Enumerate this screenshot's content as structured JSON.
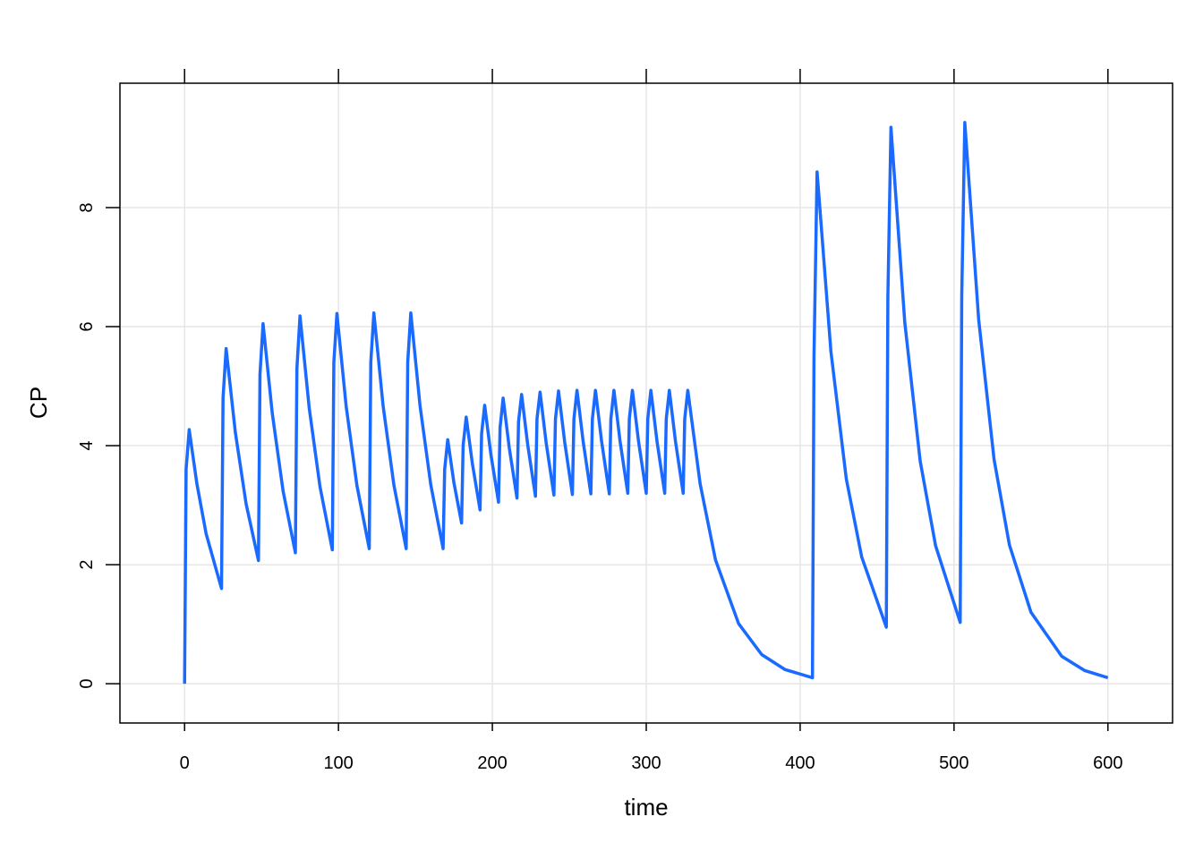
{
  "chart_data": {
    "type": "line",
    "x_label": "time",
    "y_label": "CP",
    "xlim": [
      -42,
      642
    ],
    "ylim": [
      -0.66,
      10.09
    ],
    "xticks": [
      0,
      100,
      200,
      300,
      400,
      500,
      600
    ],
    "yticks": [
      0,
      2,
      4,
      6,
      8
    ],
    "grid": true,
    "x": [
      0,
      1,
      3,
      8,
      14,
      24,
      25,
      27,
      33,
      40,
      48,
      49,
      51,
      57,
      64,
      72,
      73,
      75,
      81,
      88,
      96,
      97,
      99,
      105,
      112,
      120,
      121,
      123,
      129,
      136,
      144,
      145,
      147,
      153,
      160,
      168,
      169,
      171,
      175,
      180,
      181,
      183,
      187,
      192,
      193,
      195,
      199,
      204,
      205,
      207,
      211,
      216,
      217,
      219,
      223,
      228,
      229,
      231,
      235,
      240,
      241,
      243,
      247,
      252,
      253,
      255,
      259,
      264,
      265,
      267,
      271,
      276,
      277,
      279,
      283,
      288,
      289,
      291,
      295,
      300,
      301,
      303,
      307,
      312,
      313,
      315,
      319,
      324,
      325,
      327,
      335,
      345,
      360,
      375,
      390,
      408,
      409,
      411,
      420,
      430,
      440,
      456,
      457,
      459,
      468,
      478,
      488,
      504,
      505,
      507,
      516,
      526,
      536,
      550,
      570,
      585,
      600
    ],
    "series": [
      {
        "name": "CP",
        "color": "#1a6aff",
        "values": [
          0,
          3.6,
          4.27,
          3.36,
          2.52,
          1.6,
          4.8,
          5.63,
          4.22,
          3.02,
          2.07,
          5.2,
          6.05,
          4.54,
          3.24,
          2.2,
          5.3,
          6.18,
          4.63,
          3.31,
          2.25,
          5.4,
          6.22,
          4.66,
          3.33,
          2.27,
          5.4,
          6.23,
          4.67,
          3.34,
          2.27,
          5.4,
          6.23,
          4.67,
          3.34,
          2.27,
          3.6,
          4.1,
          3.38,
          2.7,
          4.0,
          4.48,
          3.7,
          2.92,
          4.2,
          4.68,
          3.86,
          3.05,
          4.3,
          4.8,
          3.96,
          3.12,
          4.4,
          4.86,
          4.01,
          3.15,
          4.45,
          4.9,
          4.04,
          3.17,
          4.45,
          4.92,
          4.06,
          3.18,
          4.45,
          4.93,
          4.07,
          3.19,
          4.45,
          4.93,
          4.07,
          3.19,
          4.45,
          4.93,
          4.07,
          3.2,
          4.45,
          4.93,
          4.07,
          3.2,
          4.45,
          4.93,
          4.07,
          3.2,
          4.45,
          4.93,
          4.07,
          3.2,
          4.45,
          4.93,
          3.36,
          2.08,
          1.01,
          0.49,
          0.24,
          0.1,
          5.5,
          8.6,
          5.58,
          3.44,
          2.13,
          0.95,
          6.5,
          9.35,
          6.07,
          3.74,
          2.32,
          1.03,
          6.5,
          9.43,
          6.12,
          3.77,
          2.33,
          1.2,
          0.46,
          0.22,
          0.1
        ]
      }
    ]
  }
}
